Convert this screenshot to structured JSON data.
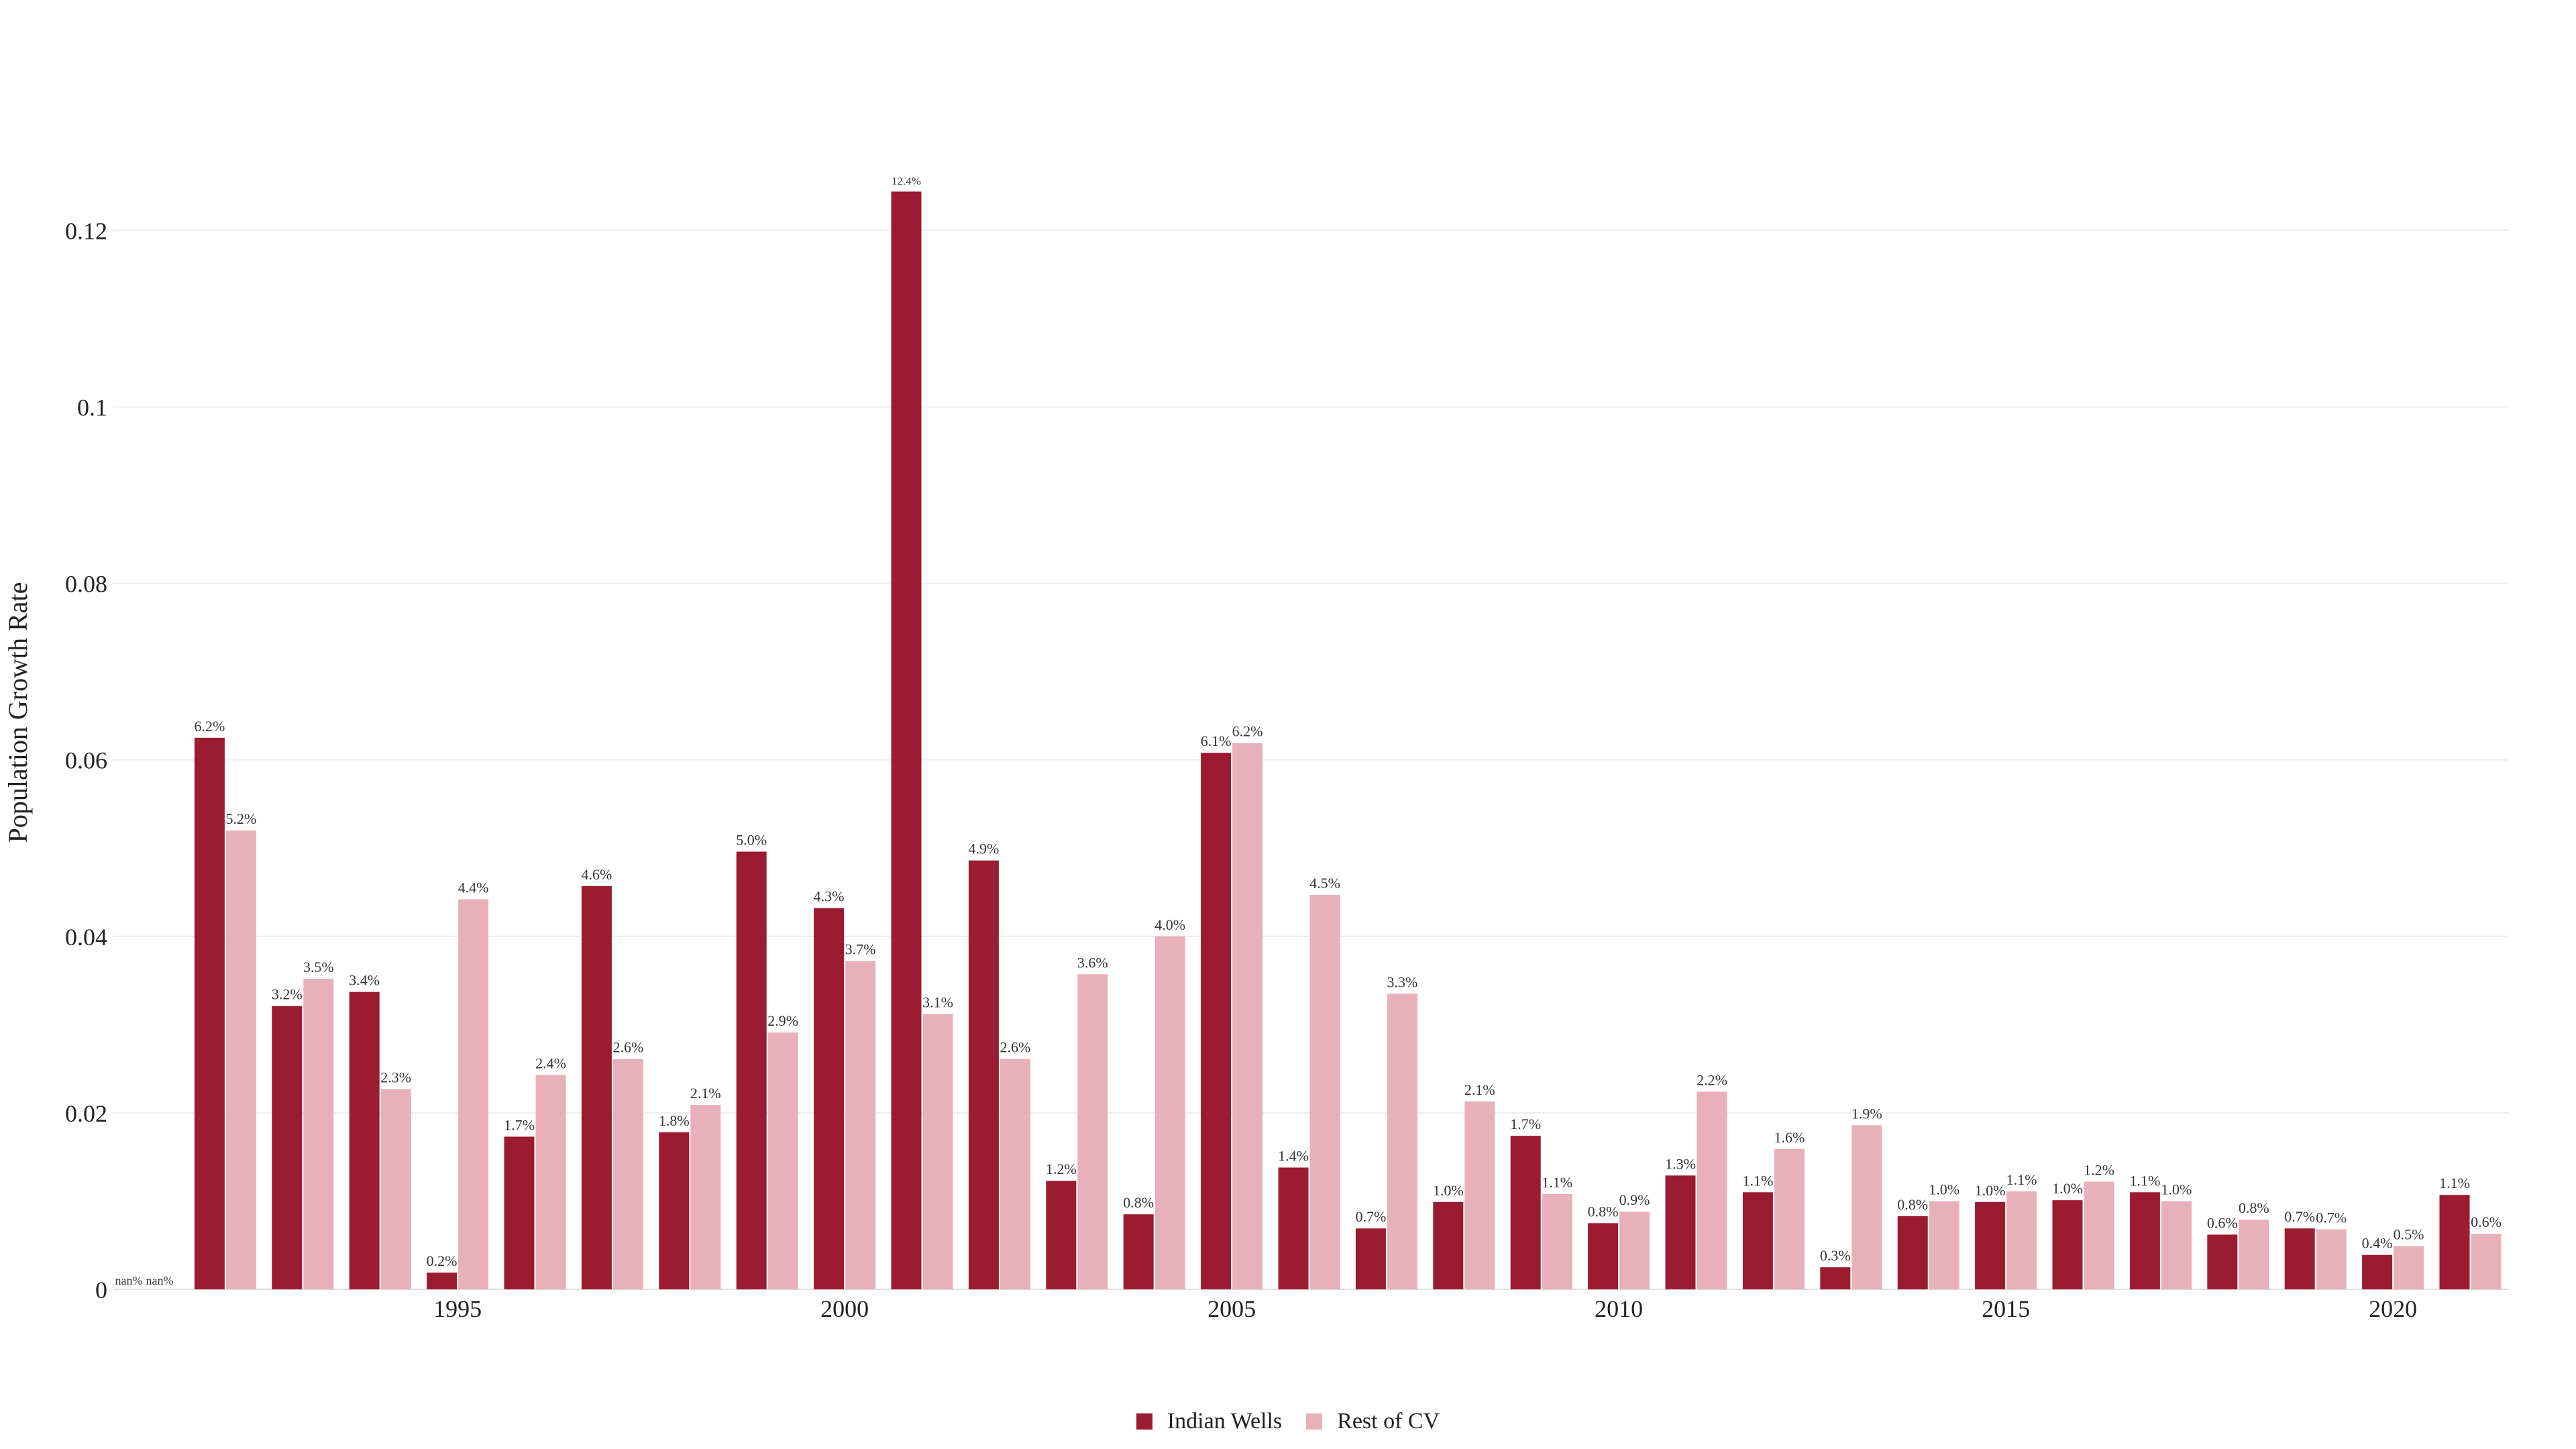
{
  "chart_data": {
    "type": "bar",
    "title": "",
    "xlabel": "",
    "ylabel": "Population Growth Rate",
    "ylim": [
      0,
      0.13
    ],
    "yticks": [
      0,
      0.02,
      0.04,
      0.06,
      0.08,
      0.1,
      0.12
    ],
    "ytick_labels": [
      "0",
      "0.02",
      "0.04",
      "0.06",
      "0.08",
      "0.1",
      "0.12"
    ],
    "xticks": [
      1995,
      2000,
      2005,
      2010,
      2015,
      2020
    ],
    "grid": "horizontal",
    "legend_position": "bottom-center",
    "years": [
      1991,
      1992,
      1993,
      1994,
      1995,
      1996,
      1997,
      1998,
      1999,
      2000,
      2001,
      2002,
      2003,
      2004,
      2005,
      2006,
      2007,
      2008,
      2009,
      2010,
      2011,
      2012,
      2013,
      2014,
      2015,
      2016,
      2017,
      2018,
      2019,
      2020,
      2021
    ],
    "series": [
      {
        "name": "Indian Wells",
        "color": "#9b1b30",
        "values": [
          null,
          0.0625,
          0.0321,
          0.0337,
          0.0019,
          0.0173,
          0.0457,
          0.0178,
          0.0496,
          0.0432,
          0.1244,
          0.0486,
          0.0123,
          0.0085,
          0.0608,
          0.0138,
          0.0069,
          0.0099,
          0.0174,
          0.0075,
          0.0129,
          0.011,
          0.0025,
          0.0083,
          0.0099,
          0.0101,
          0.011,
          0.0062,
          0.0069,
          0.0039,
          0.0107
        ],
        "labels": [
          "nan%",
          "6.2%",
          "3.2%",
          "3.4%",
          "0.2%",
          "1.7%",
          "4.6%",
          "1.8%",
          "5.0%",
          "4.3%",
          "12.4%",
          "4.9%",
          "1.2%",
          "0.8%",
          "6.1%",
          "1.4%",
          "0.7%",
          "1.0%",
          "1.7%",
          "0.8%",
          "1.3%",
          "1.1%",
          "0.3%",
          "0.8%",
          "1.0%",
          "1.0%",
          "1.1%",
          "0.6%",
          "0.7%",
          "0.4%",
          "1.1%"
        ]
      },
      {
        "name": "Rest of CV",
        "color": "#e8b0b8",
        "values": [
          null,
          0.052,
          0.0352,
          0.0227,
          0.0442,
          0.0243,
          0.0261,
          0.0209,
          0.0291,
          0.0372,
          0.0312,
          0.0261,
          0.0357,
          0.04,
          0.0619,
          0.0447,
          0.0335,
          0.0213,
          0.0108,
          0.0088,
          0.0224,
          0.0159,
          0.0186,
          0.01,
          0.0111,
          0.0122,
          0.01,
          0.0079,
          0.0068,
          0.0049,
          0.0063
        ],
        "labels": [
          "nan%",
          "5.2%",
          "3.5%",
          "2.3%",
          "4.4%",
          "2.4%",
          "2.6%",
          "2.1%",
          "2.9%",
          "3.7%",
          "3.1%",
          "2.6%",
          "3.6%",
          "4.0%",
          "6.2%",
          "4.5%",
          "3.3%",
          "2.1%",
          "1.1%",
          "0.9%",
          "2.2%",
          "1.6%",
          "1.9%",
          "1.0%",
          "1.1%",
          "1.2%",
          "1.0%",
          "0.8%",
          "0.7%",
          "0.5%",
          "0.6%"
        ]
      }
    ]
  }
}
